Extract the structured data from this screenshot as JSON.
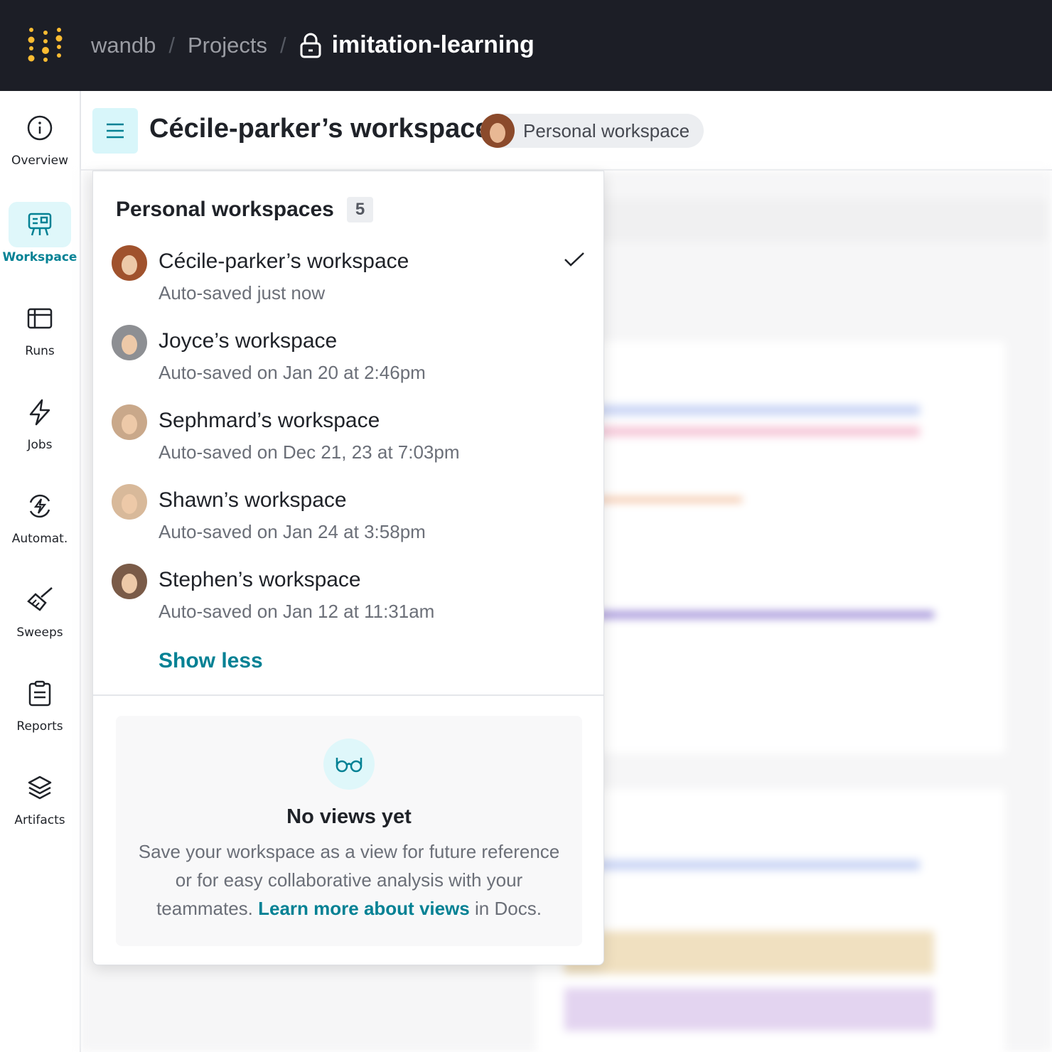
{
  "topbar": {
    "org": "wandb",
    "projects": "Projects",
    "separator": "/",
    "project": "imitation-learning",
    "logo_color": "#fcbc32"
  },
  "sidebar": {
    "items": [
      {
        "label": "Overview",
        "icon": "info-icon"
      },
      {
        "label": "Workspace",
        "icon": "workspace-icon",
        "active": true
      },
      {
        "label": "Runs",
        "icon": "table-icon"
      },
      {
        "label": "Jobs",
        "icon": "lightning-icon"
      },
      {
        "label": "Automat.",
        "icon": "automation-icon"
      },
      {
        "label": "Sweeps",
        "icon": "broom-icon"
      },
      {
        "label": "Reports",
        "icon": "clipboard-icon"
      },
      {
        "label": "Artifacts",
        "icon": "layers-icon"
      }
    ]
  },
  "header": {
    "title": "Cécile-parker’s workspace",
    "pill": "Personal workspace"
  },
  "panel": {
    "heading": "Personal workspaces",
    "count": "5",
    "items": [
      {
        "name": "Cécile-parker’s workspace",
        "saved": "Auto-saved just now",
        "selected": true,
        "avatar_color": "#a0522d"
      },
      {
        "name": "Joyce’s workspace",
        "saved": "Auto-saved on Jan 20 at 2:46pm",
        "avatar_color": "#8d8f93"
      },
      {
        "name": "Sephmard’s workspace",
        "saved": "Auto-saved on Dec 21, 23 at 7:03pm",
        "avatar_color": "#c9a88a"
      },
      {
        "name": "Shawn’s workspace",
        "saved": "Auto-saved on Jan 24 at 3:58pm",
        "avatar_color": "#d8b99a"
      },
      {
        "name": "Stephen’s workspace",
        "saved": "Auto-saved on Jan 12 at 11:31am",
        "avatar_color": "#7a5b48"
      }
    ],
    "show_less": "Show less",
    "empty": {
      "title": "No views yet",
      "desc1": "Save your workspace as a view for future reference or for easy collaborative analysis with your teammates. ",
      "link": "Learn more about views",
      "desc2": " in Docs."
    }
  },
  "colors": {
    "accent": "#038194",
    "topbar": "#1c1e26"
  }
}
